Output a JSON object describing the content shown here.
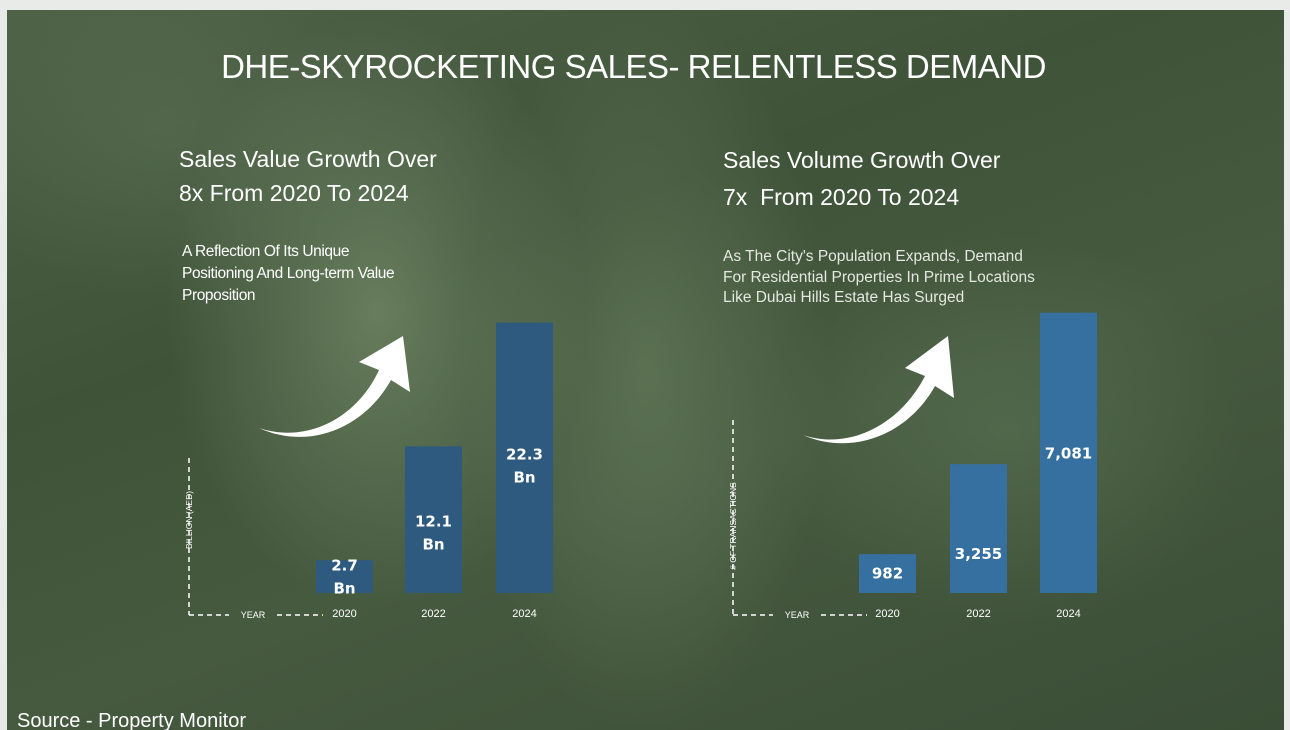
{
  "slide": {
    "title": "DHE-SKYROCKETING SALES- RELENTLESS DEMAND",
    "source": "Source - Property Monitor",
    "colors": {
      "bar_left": "#2e5a80",
      "bar_right": "#3670a0",
      "text": "#ffffff"
    }
  },
  "left_panel": {
    "heading_lines": [
      "Sales Value Growth Over",
      "8x From 2020 To 2024"
    ],
    "description_lines": [
      "A Reflection Of Its Unique",
      "Positioning And Long-term Value",
      "Proposition"
    ],
    "arrow_icon": "curved-up-arrow-icon"
  },
  "right_panel": {
    "heading_lines": [
      "Sales Volume Growth Over",
      "7x  From 2020 To 2024"
    ],
    "description_lines": [
      "As The City's Population Expands, Demand",
      "For Residential Properties In Prime Locations",
      "Like Dubai Hills Estate Has Surged"
    ],
    "arrow_icon": "curved-up-arrow-icon"
  },
  "chart_data": [
    {
      "type": "bar",
      "categories": [
        "2020",
        "2022",
        "2024"
      ],
      "values": [
        2.7,
        12.1,
        22.3
      ],
      "data_labels": [
        [
          "2.7",
          "Bn"
        ],
        [
          "12.1",
          "Bn"
        ],
        [
          "22.3",
          "Bn"
        ]
      ],
      "xlabel": "YEAR",
      "ylabel": "BILLION (AED)",
      "ylim": [
        0,
        23.5
      ],
      "grid": false
    },
    {
      "type": "bar",
      "categories": [
        "2020",
        "2022",
        "2024"
      ],
      "values": [
        982,
        3255,
        7081
      ],
      "data_labels": [
        [
          "982"
        ],
        [
          "3,255"
        ],
        [
          "7,081"
        ]
      ],
      "xlabel": "YEAR",
      "ylabel": "# OF TRANSACTIONS",
      "ylim": [
        0,
        7200
      ],
      "grid": false
    }
  ]
}
